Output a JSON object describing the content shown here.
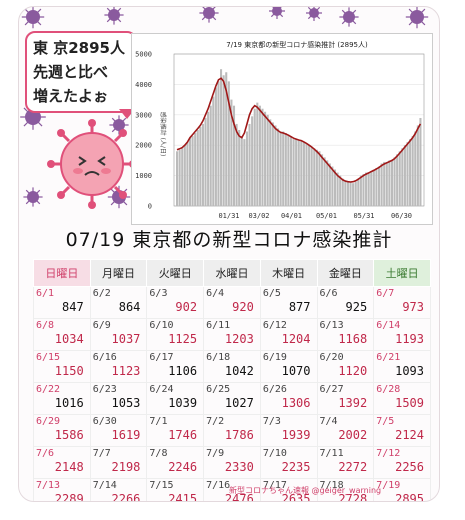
{
  "callout": {
    "line1": "東 京2895人",
    "line2": "先週と比べ",
    "line3": "増えたよぉ"
  },
  "chart_data": {
    "type": "bar",
    "title": "7/19 東京都の新型コロナ感染推計 (2895人)",
    "ylabel": "感染推計 (人/日)",
    "ylim": [
      0,
      5000
    ],
    "yticks": [
      0,
      1000,
      2000,
      3000,
      4000,
      5000
    ],
    "xticks": [
      "01/31",
      "03/02",
      "04/01",
      "05/01",
      "05/31",
      "06/30"
    ],
    "series": [
      {
        "kind": "bars",
        "color": "#bbbbbb",
        "values": [
          1800,
          1850,
          1900,
          2000,
          2100,
          2250,
          2300,
          2400,
          2500,
          2600,
          2700,
          2900,
          3100,
          3300,
          3600,
          3900,
          4100,
          4500,
          4300,
          4400,
          4100,
          3500,
          3300,
          2700,
          2500,
          2300,
          2200,
          2450,
          2700,
          2950,
          3200,
          3400,
          3300,
          3200,
          3100,
          3000,
          2850,
          2750,
          2650,
          2550,
          2450,
          2450,
          2400,
          2350,
          2300,
          2200,
          2200,
          2150,
          2150,
          2100,
          2050,
          2000,
          1950,
          1900,
          1850,
          1800,
          1700,
          1600,
          1500,
          1400,
          1300,
          1200,
          1100,
          1000,
          900,
          850,
          800,
          800,
          750,
          800,
          900,
          1000,
          1050,
          1100,
          1100,
          1150,
          1200,
          1250,
          1300,
          1400,
          1450,
          1450,
          1500,
          1500,
          1600,
          1700,
          1800,
          1900,
          2000,
          2100,
          2200,
          2300,
          2450,
          2650,
          2895
        ]
      },
      {
        "kind": "line",
        "color": "#a01818",
        "values": [
          1850,
          1880,
          1920,
          2000,
          2100,
          2250,
          2350,
          2450,
          2550,
          2650,
          2800,
          3000,
          3200,
          3450,
          3700,
          3950,
          4150,
          4200,
          4100,
          3800,
          3400,
          3000,
          2700,
          2450,
          2300,
          2250,
          2400,
          2700,
          3000,
          3200,
          3300,
          3250,
          3150,
          3050,
          2950,
          2850,
          2750,
          2650,
          2550,
          2480,
          2420,
          2400,
          2370,
          2330,
          2280,
          2230,
          2200,
          2170,
          2150,
          2110,
          2060,
          2000,
          1940,
          1870,
          1790,
          1700,
          1600,
          1500,
          1400,
          1300,
          1200,
          1100,
          1000,
          930,
          860,
          820,
          800,
          790,
          800,
          830,
          880,
          940,
          1000,
          1050,
          1090,
          1130,
          1170,
          1220,
          1270,
          1330,
          1380,
          1420,
          1460,
          1500,
          1560,
          1640,
          1740,
          1840,
          1940,
          2040,
          2140,
          2250,
          2380,
          2550,
          2700
        ]
      }
    ]
  },
  "table": {
    "title": "07/19 東京都の新型コロナ感染推計",
    "headers": [
      "日曜日",
      "月曜日",
      "火曜日",
      "水曜日",
      "木曜日",
      "金曜日",
      "土曜日"
    ],
    "rows": [
      [
        {
          "d": "6/1",
          "v": "847"
        },
        {
          "d": "6/2",
          "v": "864"
        },
        {
          "d": "6/3",
          "v": "902"
        },
        {
          "d": "6/4",
          "v": "920"
        },
        {
          "d": "6/5",
          "v": "877"
        },
        {
          "d": "6/6",
          "v": "925"
        },
        {
          "d": "6/7",
          "v": "973"
        }
      ],
      [
        {
          "d": "6/8",
          "v": "1034"
        },
        {
          "d": "6/9",
          "v": "1037"
        },
        {
          "d": "6/10",
          "v": "1125"
        },
        {
          "d": "6/11",
          "v": "1203"
        },
        {
          "d": "6/12",
          "v": "1204"
        },
        {
          "d": "6/13",
          "v": "1168"
        },
        {
          "d": "6/14",
          "v": "1193"
        }
      ],
      [
        {
          "d": "6/15",
          "v": "1150"
        },
        {
          "d": "6/16",
          "v": "1123"
        },
        {
          "d": "6/17",
          "v": "1106"
        },
        {
          "d": "6/18",
          "v": "1042"
        },
        {
          "d": "6/19",
          "v": "1070"
        },
        {
          "d": "6/20",
          "v": "1120"
        },
        {
          "d": "6/21",
          "v": "1093"
        }
      ],
      [
        {
          "d": "6/22",
          "v": "1016"
        },
        {
          "d": "6/23",
          "v": "1053"
        },
        {
          "d": "6/24",
          "v": "1039"
        },
        {
          "d": "6/25",
          "v": "1027"
        },
        {
          "d": "6/26",
          "v": "1306"
        },
        {
          "d": "6/27",
          "v": "1392"
        },
        {
          "d": "6/28",
          "v": "1509"
        }
      ],
      [
        {
          "d": "6/29",
          "v": "1586"
        },
        {
          "d": "6/30",
          "v": "1619"
        },
        {
          "d": "7/1",
          "v": "1746"
        },
        {
          "d": "7/2",
          "v": "1786"
        },
        {
          "d": "7/3",
          "v": "1939"
        },
        {
          "d": "7/4",
          "v": "2002"
        },
        {
          "d": "7/5",
          "v": "2124"
        }
      ],
      [
        {
          "d": "7/6",
          "v": "2148"
        },
        {
          "d": "7/7",
          "v": "2198"
        },
        {
          "d": "7/8",
          "v": "2246"
        },
        {
          "d": "7/9",
          "v": "2330"
        },
        {
          "d": "7/10",
          "v": "2235"
        },
        {
          "d": "7/11",
          "v": "2272"
        },
        {
          "d": "7/12",
          "v": "2256"
        }
      ],
      [
        {
          "d": "7/13",
          "v": "2289"
        },
        {
          "d": "7/14",
          "v": "2266"
        },
        {
          "d": "7/15",
          "v": "2415"
        },
        {
          "d": "7/16",
          "v": "2476"
        },
        {
          "d": "7/17",
          "v": "2635"
        },
        {
          "d": "7/18",
          "v": "2728"
        },
        {
          "d": "7/19",
          "v": "2895"
        }
      ]
    ],
    "red_flags": [
      [
        false,
        false,
        true,
        true,
        false,
        false,
        true
      ],
      [
        true,
        true,
        true,
        true,
        true,
        true,
        true
      ],
      [
        true,
        true,
        false,
        false,
        false,
        true,
        false
      ],
      [
        false,
        false,
        false,
        false,
        true,
        true,
        true
      ],
      [
        true,
        true,
        true,
        true,
        true,
        true,
        true
      ],
      [
        true,
        true,
        true,
        true,
        true,
        true,
        true
      ],
      [
        true,
        true,
        true,
        true,
        true,
        true,
        true
      ]
    ]
  },
  "footer": "新型コロナちゃん速報  @geiger_warning",
  "colors": {
    "virus": "#8a5a9e",
    "pink": "#e0507a",
    "bar": "#bbbbbb",
    "line": "#a01818"
  }
}
